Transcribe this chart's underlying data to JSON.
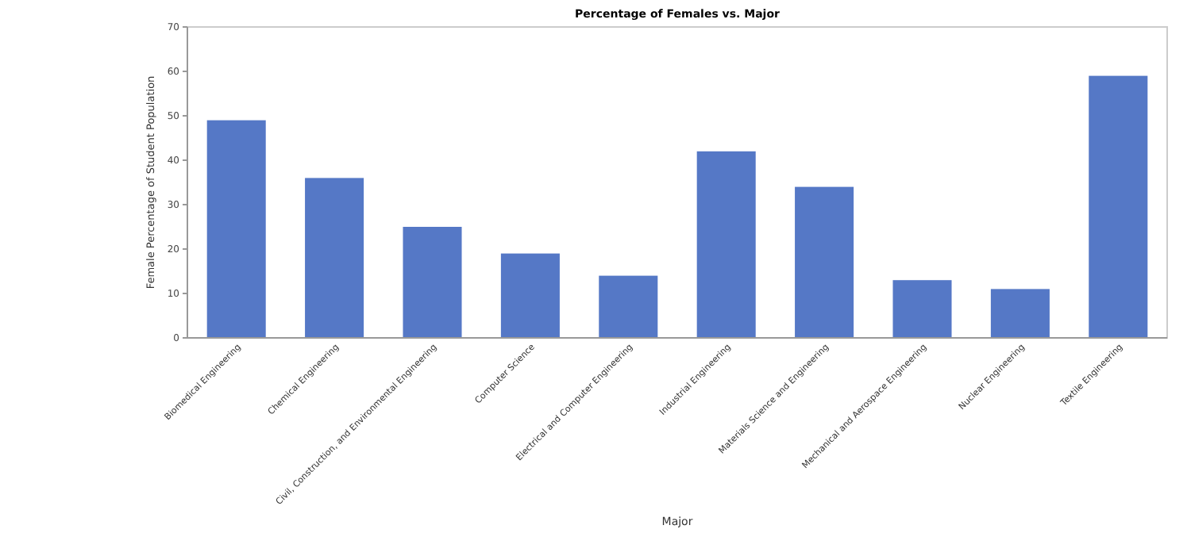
{
  "chart_data": {
    "type": "bar",
    "title": "Percentage of Females vs. Major",
    "xlabel": "Major",
    "ylabel": "Female Percentage of Student Population",
    "categories": [
      "Biomedical Engineering",
      "Chemical Engineering",
      "Civil, Construction, and Environmental Engineering",
      "Computer Science",
      "Electrical and Computer Engineering",
      "Industrial Engineering",
      "Materials Science and Engineering",
      "Mechanical and Aerospace Engineering",
      "Nuclear Engineering",
      "Textile Engineering"
    ],
    "values": [
      49,
      36,
      25,
      19,
      14,
      42,
      34,
      13,
      11,
      59
    ],
    "color": "#5578c6",
    "ylim": [
      0,
      70
    ],
    "yticks": [
      0,
      10,
      20,
      30,
      40,
      50,
      60,
      70
    ],
    "grid": false
  }
}
